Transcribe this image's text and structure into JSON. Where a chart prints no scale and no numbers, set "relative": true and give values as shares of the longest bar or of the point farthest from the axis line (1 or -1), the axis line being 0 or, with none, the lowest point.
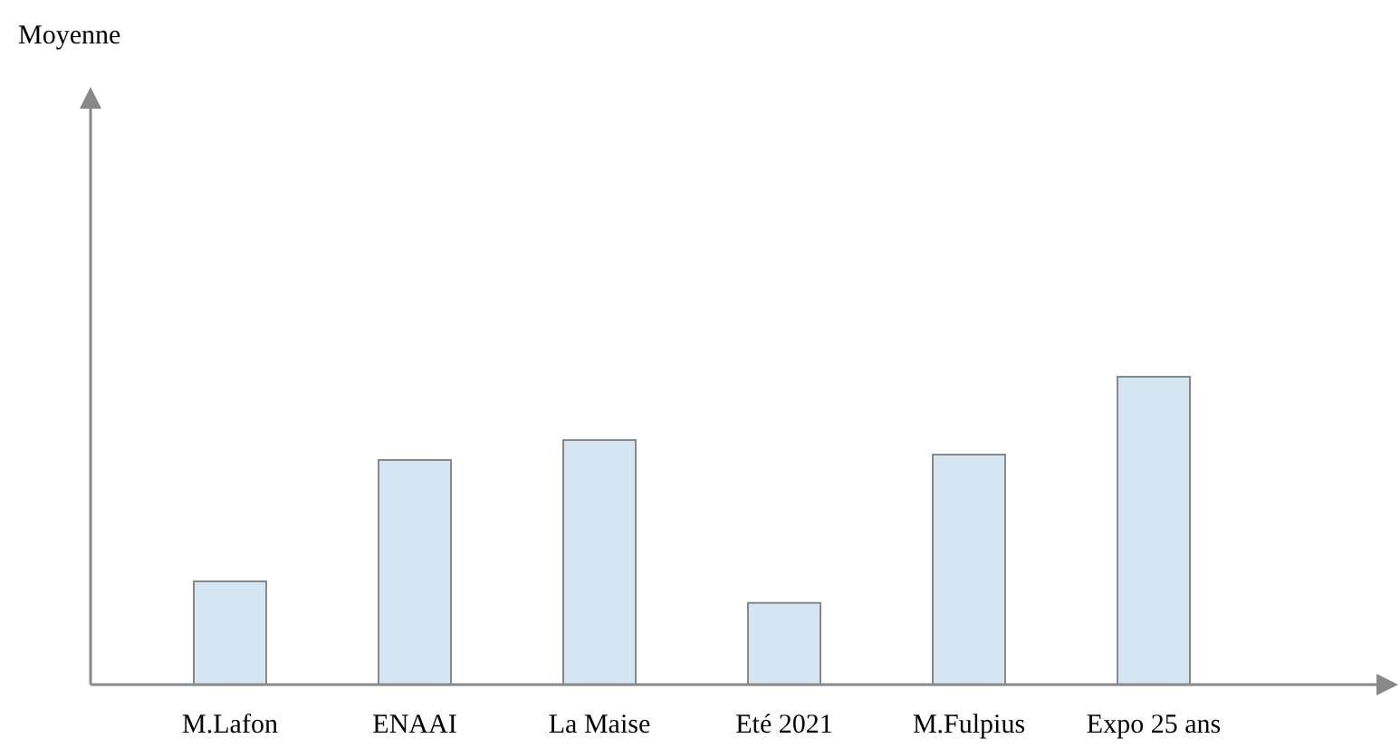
{
  "chart_data": {
    "type": "bar",
    "annotations": [
      "Moyenne"
    ],
    "relative": true,
    "categories": [
      "M.Lafon",
      "ENAAI",
      "La Maise",
      "Eté 2021",
      "M.Fulpius",
      "Expo 25 ans"
    ],
    "values": [
      0.335,
      0.729,
      0.794,
      0.265,
      0.747,
      1
    ],
    "color": "#d4e6f2",
    "grid": false,
    "legend": false
  }
}
